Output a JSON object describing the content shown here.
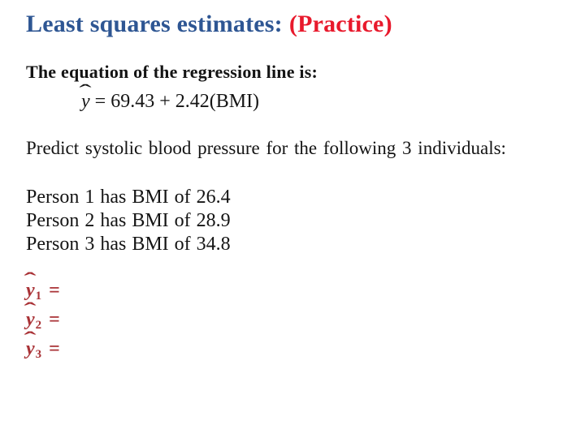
{
  "slide": {
    "title": {
      "main": "Least squares estimates:",
      "accent": "(Practice)"
    },
    "equation_heading": "The equation of the regression line is:",
    "equation": {
      "y_base": "y",
      "hat": "ˆ",
      "rhs": "= 69.43 + 2.42(BMI)"
    },
    "predict_line": "Predict systolic blood pressure for the following 3 individuals:",
    "persons": [
      {
        "text": "Person 1 has BMI of 26.4"
      },
      {
        "text": "Person 2 has BMI of 28.9"
      },
      {
        "text": "Person 3 has BMI of 34.8"
      }
    ],
    "answers": [
      {
        "y_base": "y",
        "hat": "ˆ",
        "sub": "1",
        "rhs": "="
      },
      {
        "y_base": "y",
        "hat": "ˆ",
        "sub": "2",
        "rhs": "="
      },
      {
        "y_base": "y",
        "hat": "ˆ",
        "sub": "3",
        "rhs": "="
      }
    ],
    "colors": {
      "background": "#FFFFFF",
      "title_blue": "#2E5693",
      "title_red": "#E8192C",
      "answer_red": "#A93236",
      "body_black": "#141414"
    }
  }
}
